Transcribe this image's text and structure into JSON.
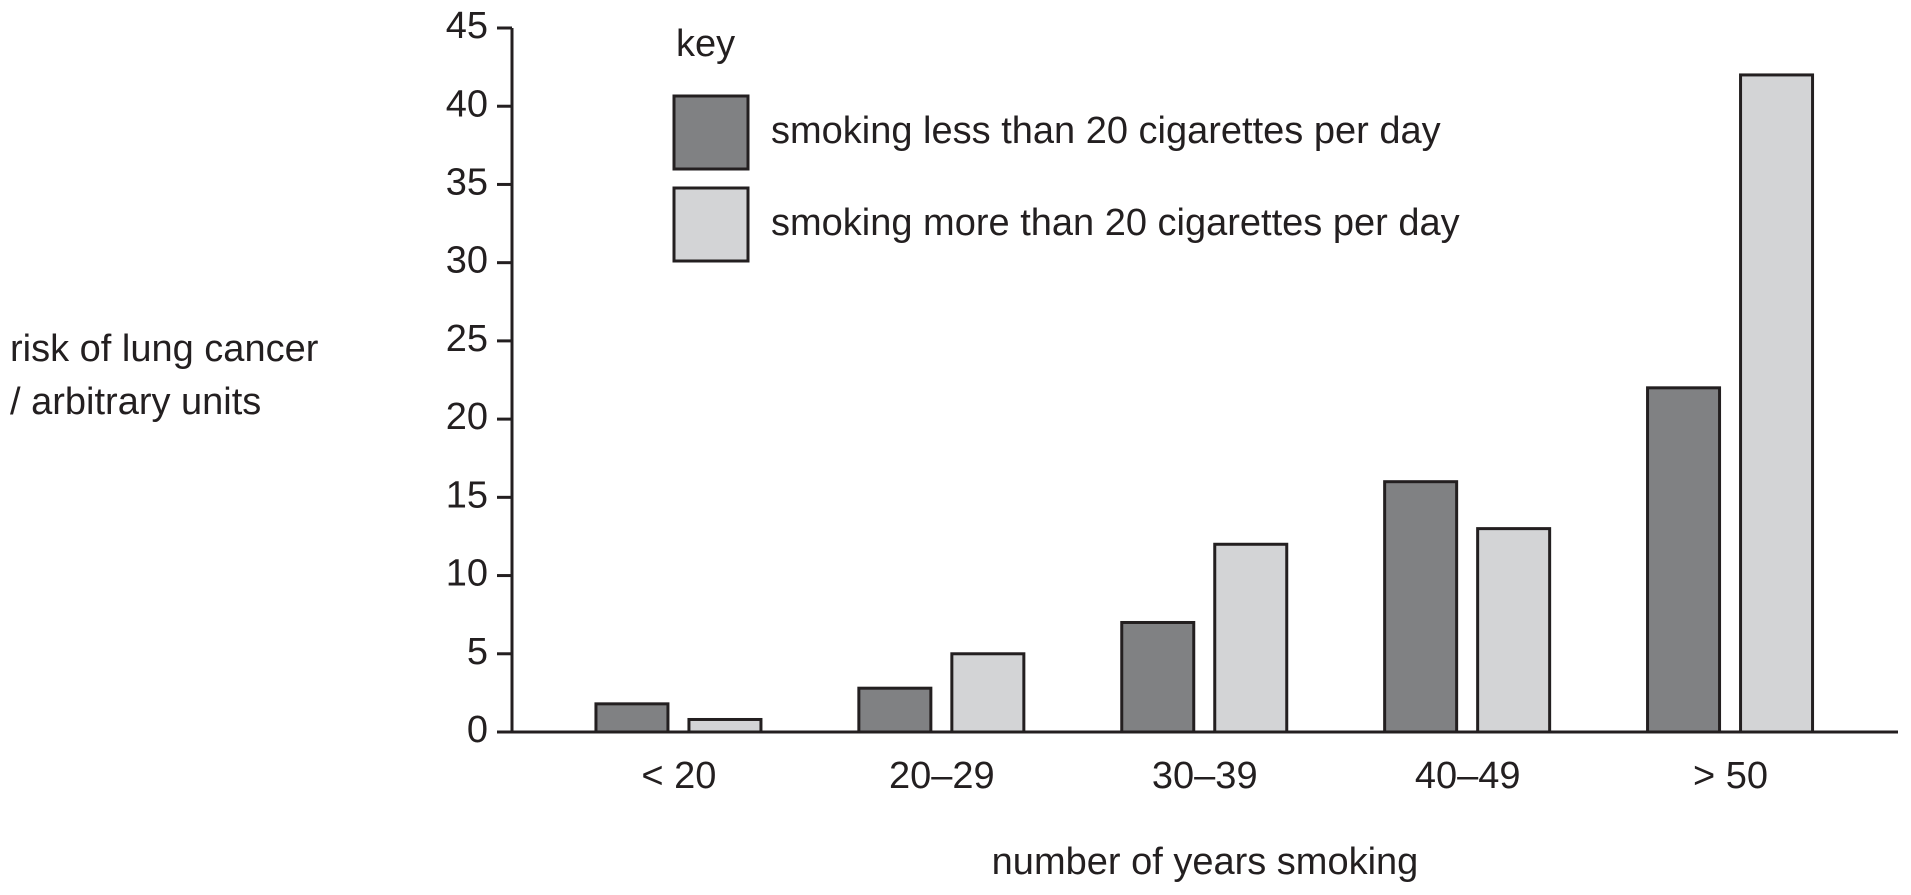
{
  "chart_data": {
    "type": "bar",
    "y_label": [
      "risk of lung cancer",
      "/ arbitrary units"
    ],
    "x_label": "number of years smoking",
    "legend_title": "key",
    "categories": [
      "< 20",
      "20–29",
      "30–39",
      "40–49",
      "> 50"
    ],
    "series": [
      {
        "name": "smoking less than 20 cigarettes per day",
        "color": "#808183",
        "values": [
          1.8,
          2.8,
          7,
          16,
          22
        ]
      },
      {
        "name": "smoking more than 20 cigarettes per day",
        "color": "#d3d4d6",
        "values": [
          0.8,
          5,
          12,
          13,
          42
        ]
      }
    ],
    "ylim": [
      0,
      45
    ],
    "yticks": [
      0,
      5,
      10,
      15,
      20,
      25,
      30,
      35,
      40,
      45
    ],
    "grid": false
  }
}
